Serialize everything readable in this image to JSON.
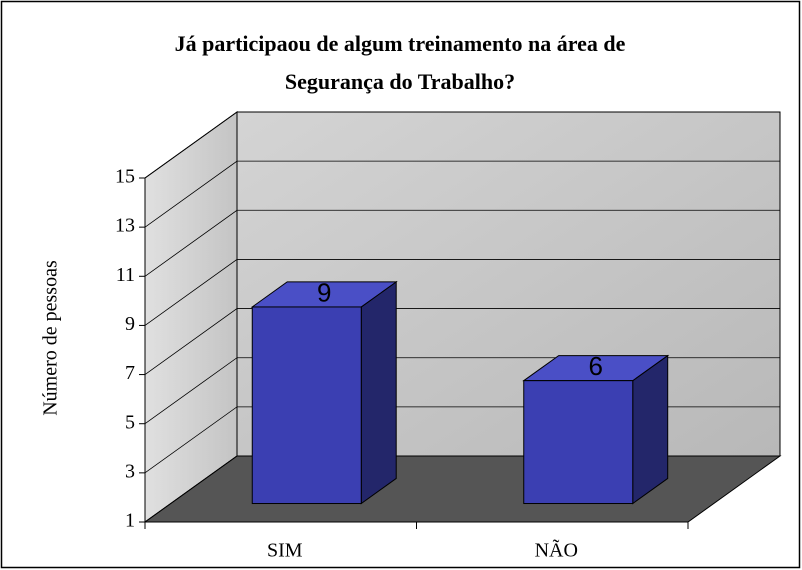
{
  "chart_data": {
    "type": "bar3d",
    "title": [
      "Já participaou de algum treinamento na área de",
      "Segurança do Trabalho?"
    ],
    "ylabel": "Número de pessoas",
    "categories": [
      "SIM",
      "NÃO"
    ],
    "values": [
      9,
      6
    ],
    "color": "#3b3fb2",
    "ylim": [
      1,
      15
    ],
    "yticks": [
      1,
      3,
      5,
      7,
      9,
      11,
      13,
      15
    ],
    "grid": true
  }
}
